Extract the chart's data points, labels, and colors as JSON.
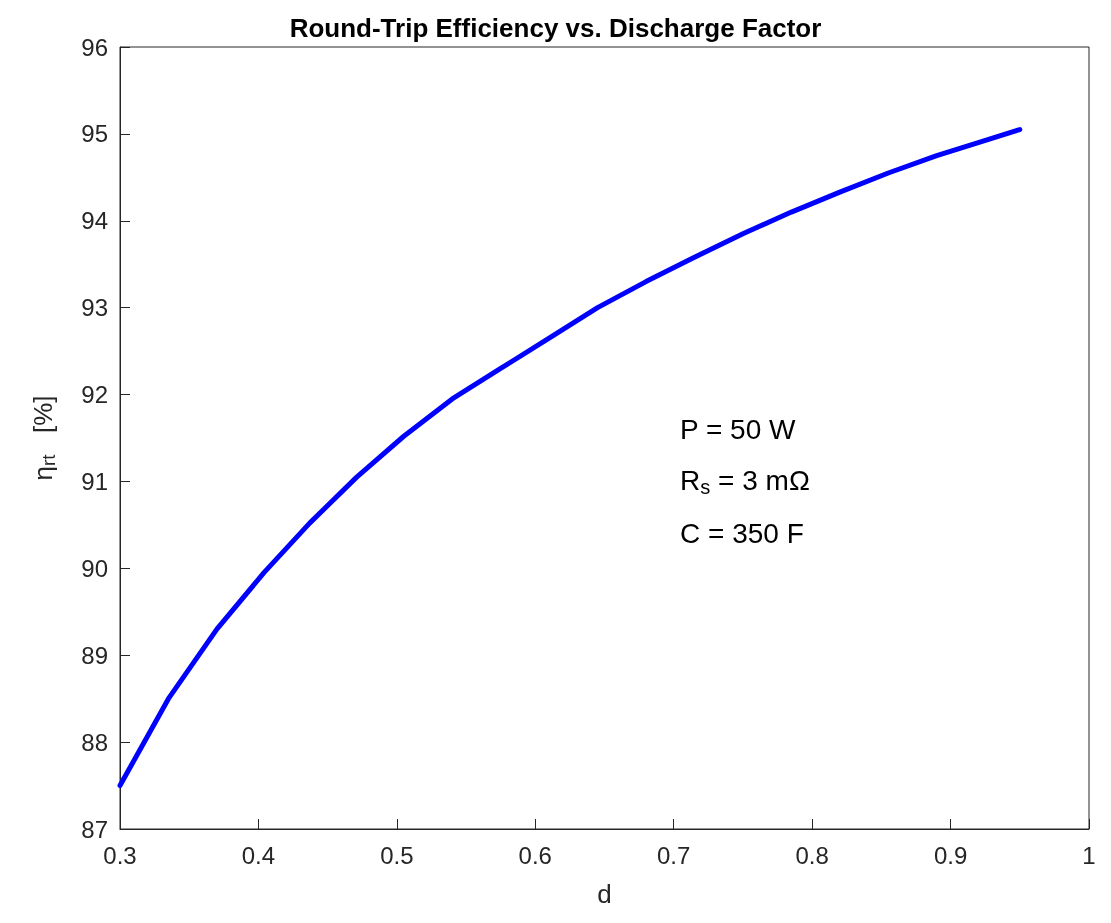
{
  "chart_data": {
    "type": "line",
    "title": "Round-Trip Efficiency vs. Discharge Factor",
    "xlabel": "d",
    "ylabel": "η$_{rt}$   [%]",
    "annotations": [
      "P = 50 W",
      "R$_{s}$ = 3 mΩ",
      "C = 350 F"
    ],
    "x": [
      0.3,
      0.335,
      0.37,
      0.404,
      0.437,
      0.471,
      0.505,
      0.54,
      0.575,
      0.61,
      0.645,
      0.68,
      0.715,
      0.75,
      0.785,
      0.82,
      0.855,
      0.89,
      0.92,
      0.95
    ],
    "series": [
      {
        "color": "#0000ff",
        "values": [
          87.5,
          88.5,
          89.3,
          89.95,
          90.52,
          91.05,
          91.52,
          91.95,
          92.3,
          92.65,
          93.0,
          93.3,
          93.58,
          93.85,
          94.1,
          94.33,
          94.55,
          94.75,
          94.9,
          95.05
        ]
      }
    ],
    "xlim": [
      0.3,
      1
    ],
    "xticks": [
      0.3,
      0.4,
      0.5,
      0.6,
      0.7,
      0.8,
      0.9,
      1
    ],
    "ylim": [
      87,
      96
    ],
    "yticks": [
      87,
      88,
      89,
      90,
      91,
      92,
      93,
      94,
      95,
      96
    ],
    "grid": false,
    "marker": "none",
    "line_style": "solid"
  }
}
